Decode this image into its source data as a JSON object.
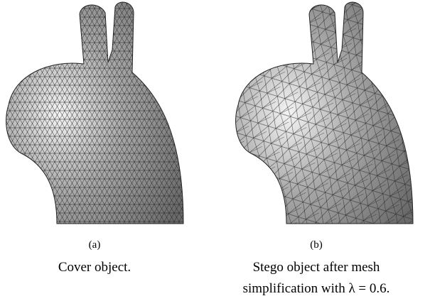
{
  "figure": {
    "panels": [
      {
        "label": "(a)",
        "caption": [
          "Cover object."
        ]
      },
      {
        "label": "(b)",
        "caption": [
          "Stego object after mesh",
          "simplification with λ = 0.6."
        ]
      }
    ]
  }
}
